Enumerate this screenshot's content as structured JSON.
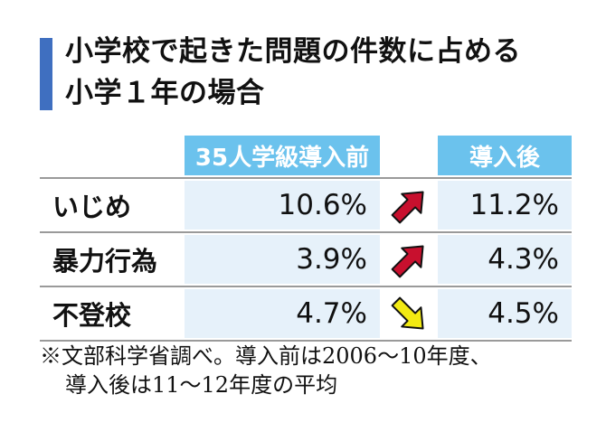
{
  "title": {
    "line1": "小学校で起きた問題の件数に占める",
    "line2": "小学１年の場合"
  },
  "colors": {
    "accent_bar": "#3f6fc0",
    "header_bg": "#6bc2ed",
    "cell_bg": "#e6f1fa",
    "arrow_up": "#c8102e",
    "arrow_down": "#f2ea12"
  },
  "chart_data": {
    "type": "table",
    "columns": [
      "35人学級導入前",
      "導入後"
    ],
    "rows": [
      {
        "label": "いじめ",
        "before": 10.6,
        "after": 11.2,
        "before_text": "10.6%",
        "after_text": "11.2%",
        "trend": "up"
      },
      {
        "label": "暴力行為",
        "before": 3.9,
        "after": 4.3,
        "before_text": "3.9%",
        "after_text": "4.3%",
        "trend": "up"
      },
      {
        "label": "不登校",
        "before": 4.7,
        "after": 4.5,
        "before_text": "4.7%",
        "after_text": "4.5%",
        "trend": "down"
      }
    ],
    "unit": "%"
  },
  "note": {
    "line1": "※文部科学省調べ。導入前は2006～10年度、",
    "line2": "導入後は11～12年度の平均"
  }
}
